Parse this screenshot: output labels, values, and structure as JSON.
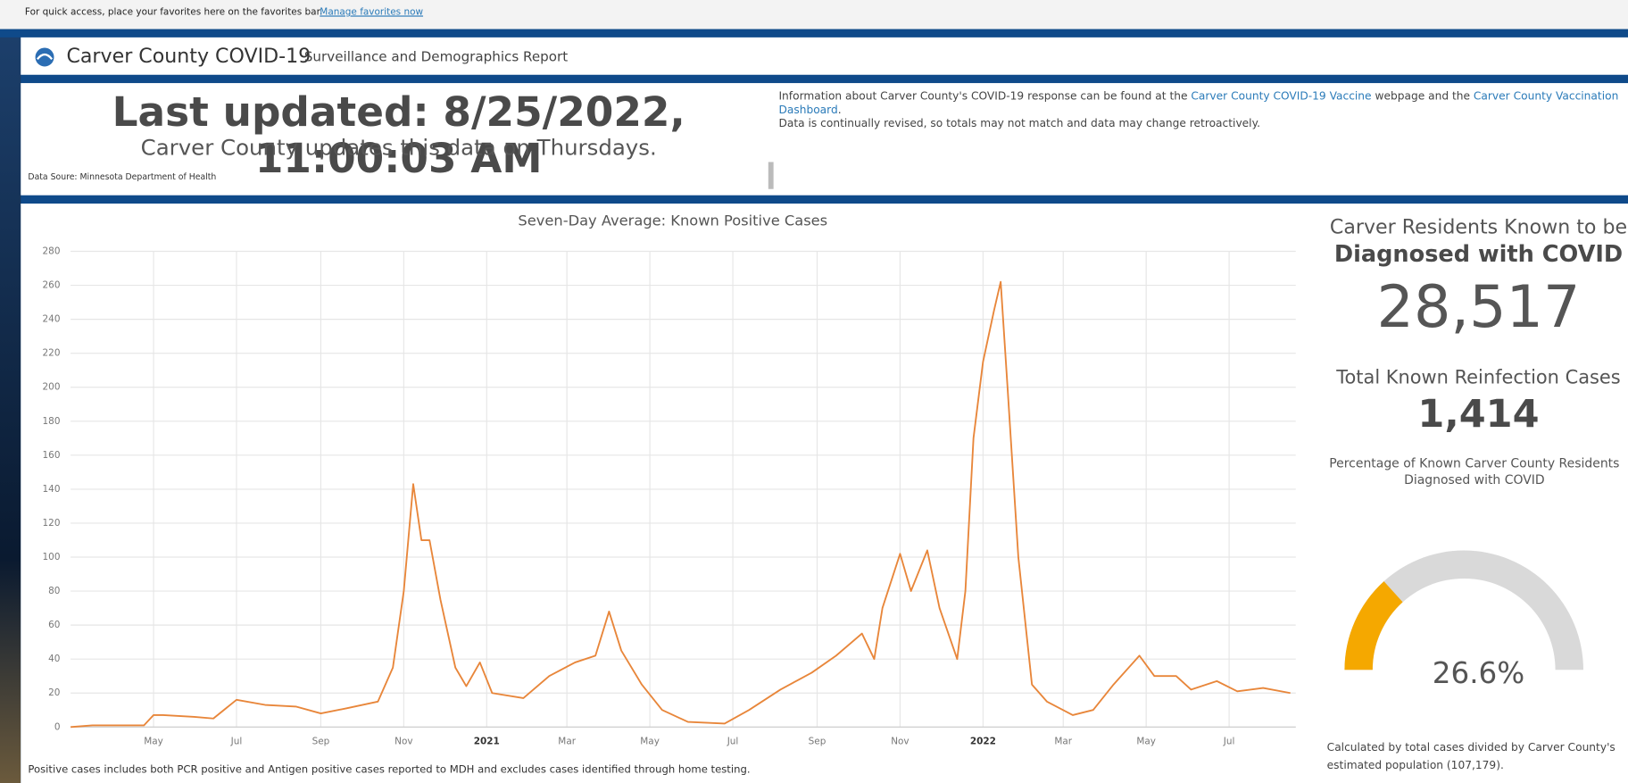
{
  "favorites_bar": {
    "text": "For quick access, place your favorites here on the favorites bar.",
    "link": "Manage favorites now"
  },
  "header": {
    "title": "Carver County COVID-19",
    "subtitle": "Surveillance and Demographics Report"
  },
  "update_panel": {
    "last_updated": "Last updated: 8/25/2022, 11:00:03 AM",
    "schedule": "Carver County updates this data on Thursdays.",
    "source": "Data Soure: Minnesota Department of Health"
  },
  "info": {
    "prefix": "Information about Carver County's COVID-19 response can be found at the ",
    "link1": "Carver County COVID-19 Vaccine",
    "middle": " webpage and the ",
    "link2": "Carver County Vaccination Dashboard",
    "suffix": ".",
    "line2": "Data is continually revised, so totals may not match and data may change retroactively."
  },
  "chart_data": {
    "type": "line",
    "title": "Seven-Day Average: Known Positive Cases",
    "color": "#e8863a",
    "grid": true,
    "x": [
      "2020-03-01",
      "2020-03-17",
      "2020-04-24",
      "2020-05-01",
      "2020-05-08",
      "2020-05-31",
      "2020-06-14",
      "2020-07-01",
      "2020-07-22",
      "2020-08-14",
      "2020-09-01",
      "2020-09-20",
      "2020-10-13",
      "2020-10-24",
      "2020-11-01",
      "2020-11-08",
      "2020-11-14",
      "2020-11-20",
      "2020-11-28",
      "2020-12-09",
      "2020-12-17",
      "2020-12-27",
      "2021-01-05",
      "2021-01-28",
      "2021-02-16",
      "2021-03-07",
      "2021-03-22",
      "2021-04-01",
      "2021-04-10",
      "2021-04-25",
      "2021-05-10",
      "2021-05-29",
      "2021-06-25",
      "2021-07-13",
      "2021-08-05",
      "2021-08-28",
      "2021-09-15",
      "2021-10-04",
      "2021-10-13",
      "2021-10-19",
      "2021-11-01",
      "2021-11-09",
      "2021-11-21",
      "2021-11-30",
      "2021-12-13",
      "2021-12-19",
      "2021-12-25",
      "2022-01-01",
      "2022-01-09",
      "2022-01-14",
      "2022-01-19",
      "2022-01-27",
      "2022-02-06",
      "2022-02-17",
      "2022-03-08",
      "2022-03-23",
      "2022-04-07",
      "2022-04-26",
      "2022-05-07",
      "2022-05-23",
      "2022-06-03",
      "2022-06-22",
      "2022-07-07",
      "2022-07-26",
      "2022-08-15"
    ],
    "values": [
      0,
      1,
      1,
      7,
      7,
      6,
      5,
      16,
      13,
      12,
      8,
      11,
      15,
      35,
      80,
      143,
      110,
      110,
      75,
      35,
      24,
      38,
      20,
      17,
      30,
      38,
      42,
      68,
      45,
      25,
      10,
      3,
      2,
      10,
      22,
      32,
      42,
      55,
      40,
      70,
      102,
      80,
      104,
      70,
      40,
      80,
      170,
      215,
      245,
      262,
      200,
      100,
      25,
      15,
      7,
      10,
      25,
      42,
      30,
      30,
      22,
      27,
      21,
      23,
      20
    ],
    "xlim": [
      "2020-03-01",
      "2022-08-19"
    ],
    "xticks": [
      {
        "value": "2020-05",
        "label": "May"
      },
      {
        "value": "2020-07",
        "label": "Jul"
      },
      {
        "value": "2020-09",
        "label": "Sep"
      },
      {
        "value": "2020-11",
        "label": "Nov"
      },
      {
        "value": "2021-01",
        "label": "2021"
      },
      {
        "value": "2021-03",
        "label": "Mar"
      },
      {
        "value": "2021-05",
        "label": "May"
      },
      {
        "value": "2021-07",
        "label": "Jul"
      },
      {
        "value": "2021-09",
        "label": "Sep"
      },
      {
        "value": "2021-11",
        "label": "Nov"
      },
      {
        "value": "2022-01",
        "label": "2022"
      },
      {
        "value": "2022-03",
        "label": "Mar"
      },
      {
        "value": "2022-05",
        "label": "May"
      },
      {
        "value": "2022-07",
        "label": "Jul"
      }
    ],
    "ylim": [
      0,
      280
    ],
    "yticks": [
      0,
      20,
      40,
      60,
      80,
      100,
      120,
      140,
      160,
      180,
      200,
      220,
      240,
      260,
      280
    ]
  },
  "footnote": "Positive cases includes both PCR positive and Antigen positive cases reported to MDH and excludes cases identified through home testing.",
  "stats": {
    "diagnosed_label": "Carver Residents Known to be",
    "diagnosed_emphasis": "Diagnosed with COVID",
    "diagnosed_value": "28,517",
    "reinfection_label": "Total Known Reinfection Cases",
    "reinfection_value": "1,414"
  },
  "gauge": {
    "title": "Percentage of Known Carver County Residents Diagnosed with COVID",
    "value": 26.6,
    "value_label": "26.6%",
    "color": "#f5a800",
    "track_color": "#d9d9d9",
    "note": "Calculated by total cases divided by Carver County's estimated population (107,179)."
  }
}
